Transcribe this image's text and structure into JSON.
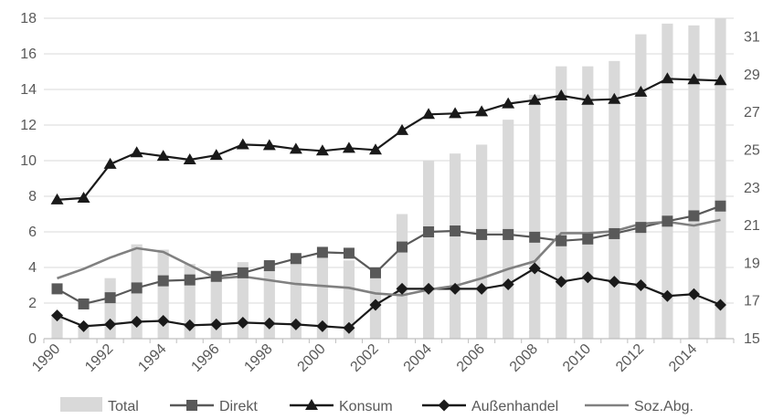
{
  "chart_data": {
    "type": "bar+line",
    "title": "",
    "x": [
      1990,
      1991,
      1992,
      1993,
      1994,
      1995,
      1996,
      1997,
      1998,
      1999,
      2000,
      2001,
      2002,
      2003,
      2004,
      2005,
      2006,
      2007,
      2008,
      2009,
      2010,
      2011,
      2012,
      2013,
      2014,
      2015
    ],
    "x_tick_labels": [
      "1990",
      "1992",
      "1994",
      "1996",
      "1998",
      "2000",
      "2002",
      "2004",
      "2006",
      "2008",
      "2010",
      "2012",
      "2014"
    ],
    "y_left": {
      "range": [
        0,
        18
      ],
      "ticks": [
        "0",
        "2",
        "4",
        "6",
        "8",
        "10",
        "12",
        "14",
        "16",
        "18"
      ]
    },
    "y_right": {
      "range": [
        15,
        32
      ],
      "ticks": [
        "15",
        "17",
        "19",
        "21",
        "23",
        "25",
        "27",
        "29",
        "31"
      ]
    },
    "grid": "horizontal",
    "legend_position": "bottom",
    "colors": {
      "bar": "#d9d9d9",
      "Direkt": "#595959",
      "Konsum": "#1a1a1a",
      "Außenhandel": "#1a1a1a",
      "Soz.Abg.": "#808080",
      "grid": "#d9d9d9",
      "axis": "#bfbfbf"
    },
    "series": [
      {
        "name": "Total",
        "kind": "bar",
        "axis": "left",
        "values": [
          1.4,
          0.8,
          3.4,
          5.3,
          5.0,
          4.2,
          3.8,
          4.3,
          4.3,
          4.5,
          4.8,
          4.4,
          3.4,
          7.0,
          10.0,
          10.4,
          10.9,
          12.3,
          13.7,
          15.3,
          15.3,
          15.6,
          17.1,
          17.7,
          17.6,
          18.0
        ]
      },
      {
        "name": "Direkt",
        "kind": "line",
        "marker": "square",
        "axis": "left",
        "values": [
          2.8,
          1.95,
          2.3,
          2.85,
          3.25,
          3.3,
          3.5,
          3.7,
          4.1,
          4.5,
          4.85,
          4.8,
          3.7,
          5.15,
          6.0,
          6.05,
          5.85,
          5.85,
          5.7,
          5.5,
          5.6,
          5.9,
          6.25,
          6.6,
          6.9,
          7.45
        ]
      },
      {
        "name": "Konsum",
        "kind": "line",
        "marker": "triangle",
        "axis": "left",
        "values": [
          7.8,
          7.9,
          9.8,
          10.45,
          10.25,
          10.05,
          10.3,
          10.9,
          10.85,
          10.65,
          10.55,
          10.7,
          10.6,
          11.7,
          12.6,
          12.65,
          12.75,
          13.2,
          13.4,
          13.65,
          13.4,
          13.45,
          13.85,
          14.6,
          14.55,
          14.5
        ]
      },
      {
        "name": "Außenhandel",
        "kind": "line",
        "marker": "diamond",
        "axis": "left",
        "values": [
          1.3,
          0.7,
          0.8,
          0.95,
          1.0,
          0.75,
          0.8,
          0.9,
          0.85,
          0.8,
          0.7,
          0.6,
          1.9,
          2.8,
          2.8,
          2.8,
          2.8,
          3.05,
          3.95,
          3.2,
          3.45,
          3.2,
          3.0,
          2.4,
          2.5,
          1.9
        ]
      },
      {
        "name": "Soz.Abg.",
        "kind": "line",
        "marker": "none",
        "axis": "right",
        "values": [
          18.2,
          18.7,
          19.3,
          19.8,
          19.6,
          18.9,
          18.2,
          18.3,
          18.1,
          17.9,
          17.8,
          17.7,
          17.4,
          17.3,
          17.6,
          17.8,
          18.2,
          18.7,
          19.1,
          20.6,
          20.6,
          20.7,
          21.1,
          21.2,
          21.0,
          21.3
        ]
      }
    ]
  }
}
